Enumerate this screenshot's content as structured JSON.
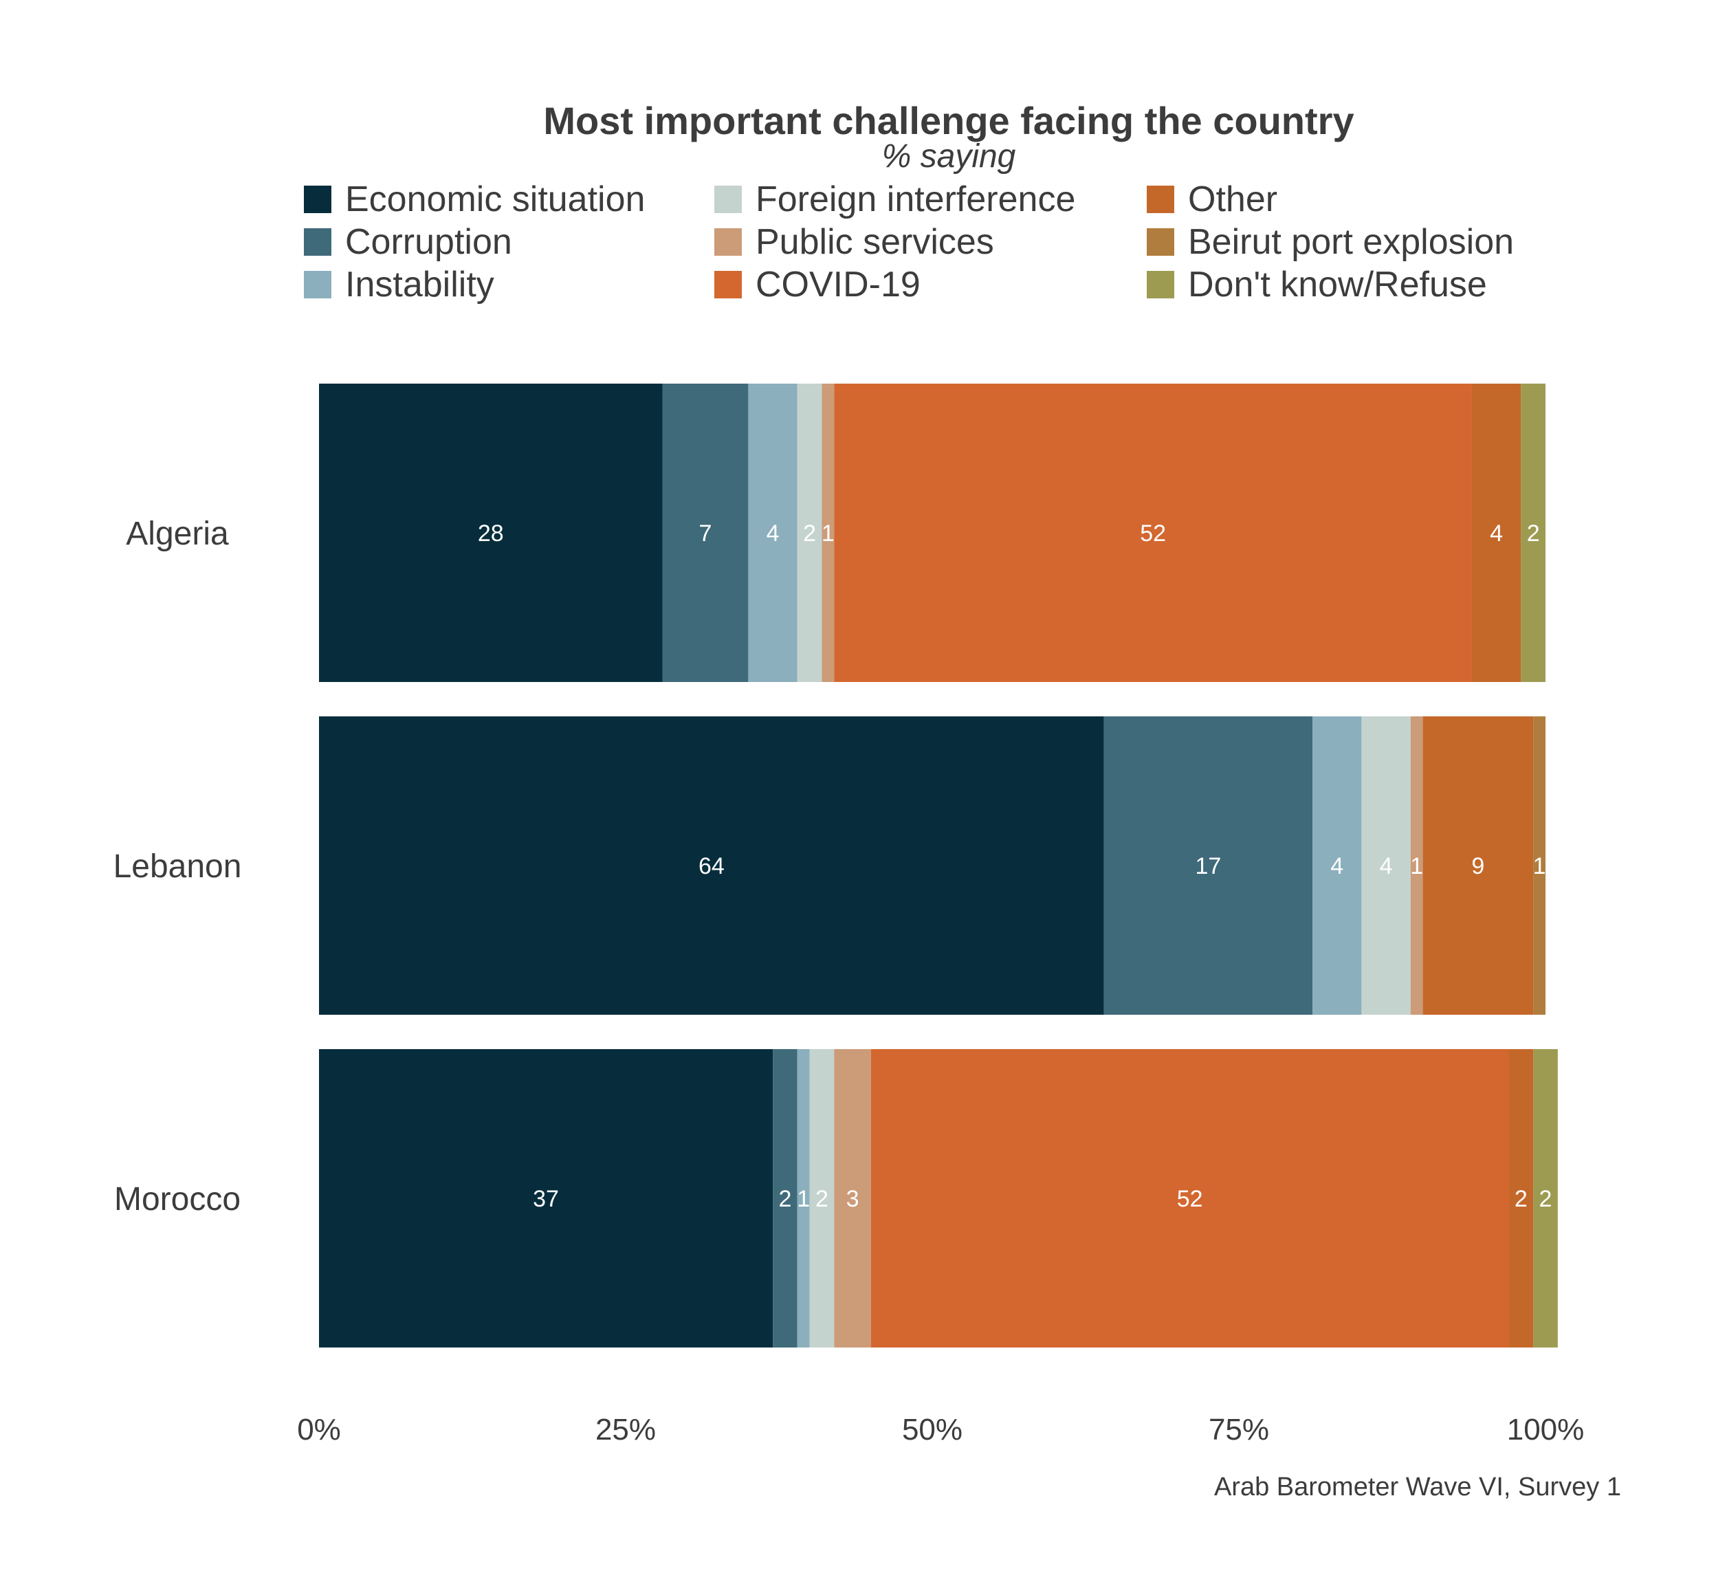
{
  "chart_data": {
    "type": "bar",
    "orientation": "horizontal",
    "stacked": true,
    "title": "Most important challenge facing the country",
    "subtitle": "% saying",
    "caption": "Arab Barometer Wave VI, Survey 1",
    "categories": [
      "Algeria",
      "Lebanon",
      "Morocco"
    ],
    "xlim": [
      0,
      100
    ],
    "x_ticks": [
      "0%",
      "25%",
      "50%",
      "75%",
      "100%"
    ],
    "grid": false,
    "legend_position": "top",
    "series": [
      {
        "name": "Economic situation",
        "color": "#072d3c",
        "values": [
          28,
          64,
          37
        ],
        "labels": [
          "28",
          "64",
          "37"
        ]
      },
      {
        "name": "Corruption",
        "color": "#3f6a7a",
        "values": [
          7,
          17,
          2
        ],
        "labels": [
          "7",
          "17",
          "2"
        ]
      },
      {
        "name": "Instability",
        "color": "#8bafbc",
        "values": [
          4,
          4,
          1
        ],
        "labels": [
          "4",
          "4",
          "1"
        ]
      },
      {
        "name": "Foreign interference",
        "color": "#c5d3cf",
        "values": [
          2,
          4,
          2
        ],
        "labels": [
          "2",
          "4",
          "2"
        ]
      },
      {
        "name": "Public services",
        "color": "#cc9b78",
        "values": [
          1,
          1,
          3
        ],
        "labels": [
          "1",
          "1",
          "3"
        ]
      },
      {
        "name": "COVID-19",
        "color": "#d3672f",
        "values": [
          52,
          0,
          52
        ],
        "labels": [
          "52",
          "",
          "52"
        ]
      },
      {
        "name": "Other",
        "color": "#c4682a",
        "values": [
          4,
          9,
          2
        ],
        "labels": [
          "4",
          "9",
          "2"
        ]
      },
      {
        "name": "Beirut port explosion",
        "color": "#b07d3e",
        "values": [
          0,
          1,
          0
        ],
        "labels": [
          "",
          "1",
          ""
        ]
      },
      {
        "name": "Don't know/Refuse",
        "color": "#9d9b52",
        "values": [
          2,
          0,
          2
        ],
        "labels": [
          "2",
          "",
          "2"
        ]
      }
    ]
  }
}
